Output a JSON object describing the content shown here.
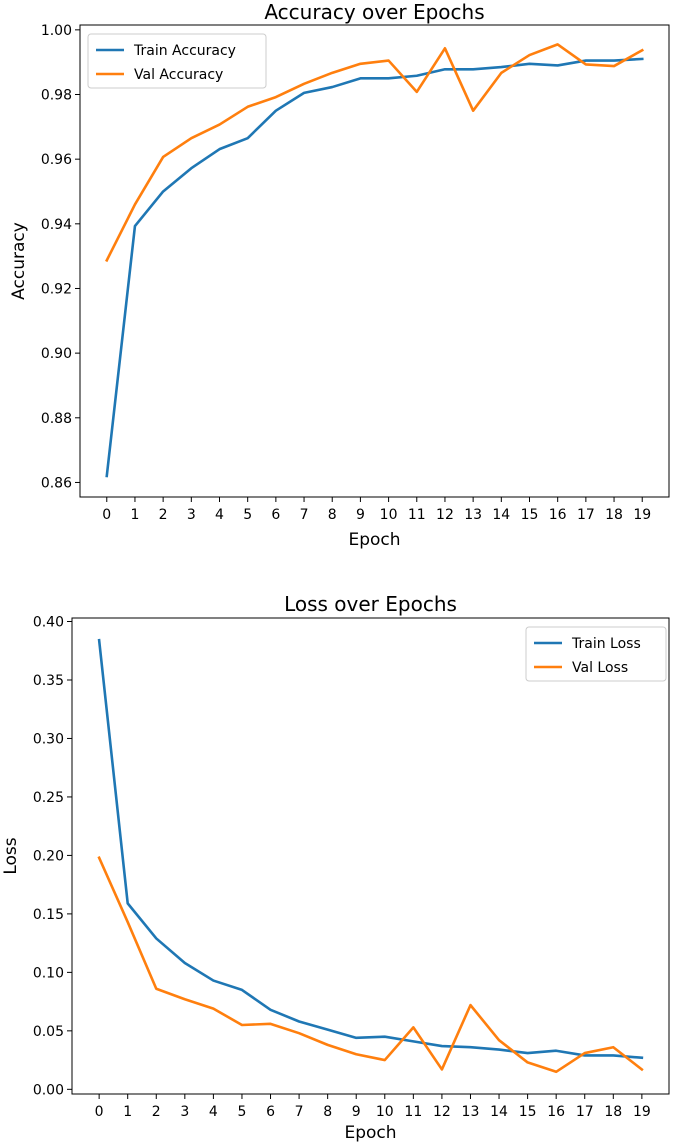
{
  "colors": {
    "train": "#1f77b4",
    "val": "#ff7f0e"
  },
  "chart_data": [
    {
      "type": "line",
      "title": "Accuracy over Epochs",
      "xlabel": "Epoch",
      "ylabel": "Accuracy",
      "x": [
        0,
        1,
        2,
        3,
        4,
        5,
        6,
        7,
        8,
        9,
        10,
        11,
        12,
        13,
        14,
        15,
        16,
        17,
        18,
        19
      ],
      "xticks": [
        "0",
        "1",
        "2",
        "3",
        "4",
        "5",
        "6",
        "7",
        "8",
        "9",
        "10",
        "11",
        "12",
        "13",
        "14",
        "15",
        "16",
        "17",
        "18",
        "19"
      ],
      "xlim": [
        -0.95,
        19.95
      ],
      "ylim": [
        0.8555,
        1.0015
      ],
      "yticks": [
        0.86,
        0.88,
        0.9,
        0.92,
        0.94,
        0.96,
        0.98,
        1.0
      ],
      "ytick_labels": [
        "0.86",
        "0.88",
        "0.90",
        "0.92",
        "0.94",
        "0.96",
        "0.98",
        "1.00"
      ],
      "legend": "top-left",
      "grid": false,
      "series": [
        {
          "name": "Train Accuracy",
          "color": "#1f77b4",
          "values": [
            0.862,
            0.9393,
            0.95,
            0.9572,
            0.9631,
            0.9665,
            0.975,
            0.9805,
            0.9823,
            0.985,
            0.985,
            0.9858,
            0.9878,
            0.9878,
            0.9885,
            0.9895,
            0.989,
            0.9905,
            0.9905,
            0.991
          ]
        },
        {
          "name": "Val Accuracy",
          "color": "#ff7f0e",
          "values": [
            0.9287,
            0.946,
            0.9607,
            0.9665,
            0.9707,
            0.9762,
            0.9792,
            0.9833,
            0.9867,
            0.9895,
            0.9905,
            0.9808,
            0.9943,
            0.975,
            0.9867,
            0.9922,
            0.9955,
            0.9893,
            0.9888,
            0.9937
          ]
        }
      ]
    },
    {
      "type": "line",
      "title": "Loss over Epochs",
      "xlabel": "Epoch",
      "ylabel": "Loss",
      "x": [
        0,
        1,
        2,
        3,
        4,
        5,
        6,
        7,
        8,
        9,
        10,
        11,
        12,
        13,
        14,
        15,
        16,
        17,
        18,
        19
      ],
      "xticks": [
        "0",
        "1",
        "2",
        "3",
        "4",
        "5",
        "6",
        "7",
        "8",
        "9",
        "10",
        "11",
        "12",
        "13",
        "14",
        "15",
        "16",
        "17",
        "18",
        "19"
      ],
      "xlim": [
        -0.95,
        19.95
      ],
      "ylim": [
        -0.004,
        0.403
      ],
      "yticks": [
        0.0,
        0.05,
        0.1,
        0.15,
        0.2,
        0.25,
        0.3,
        0.35,
        0.4
      ],
      "ytick_labels": [
        "0.00",
        "0.05",
        "0.10",
        "0.15",
        "0.20",
        "0.25",
        "0.30",
        "0.35",
        "0.40"
      ],
      "legend": "top-right",
      "grid": false,
      "series": [
        {
          "name": "Train Loss",
          "color": "#1f77b4",
          "values": [
            0.384,
            0.159,
            0.129,
            0.108,
            0.093,
            0.085,
            0.068,
            0.058,
            0.051,
            0.044,
            0.045,
            0.041,
            0.037,
            0.036,
            0.034,
            0.031,
            0.033,
            0.029,
            0.029,
            0.027
          ]
        },
        {
          "name": "Val Loss",
          "color": "#ff7f0e",
          "values": [
            0.198,
            0.143,
            0.086,
            0.077,
            0.069,
            0.055,
            0.056,
            0.048,
            0.038,
            0.03,
            0.025,
            0.053,
            0.017,
            0.072,
            0.042,
            0.023,
            0.015,
            0.031,
            0.036,
            0.017
          ]
        }
      ]
    }
  ]
}
